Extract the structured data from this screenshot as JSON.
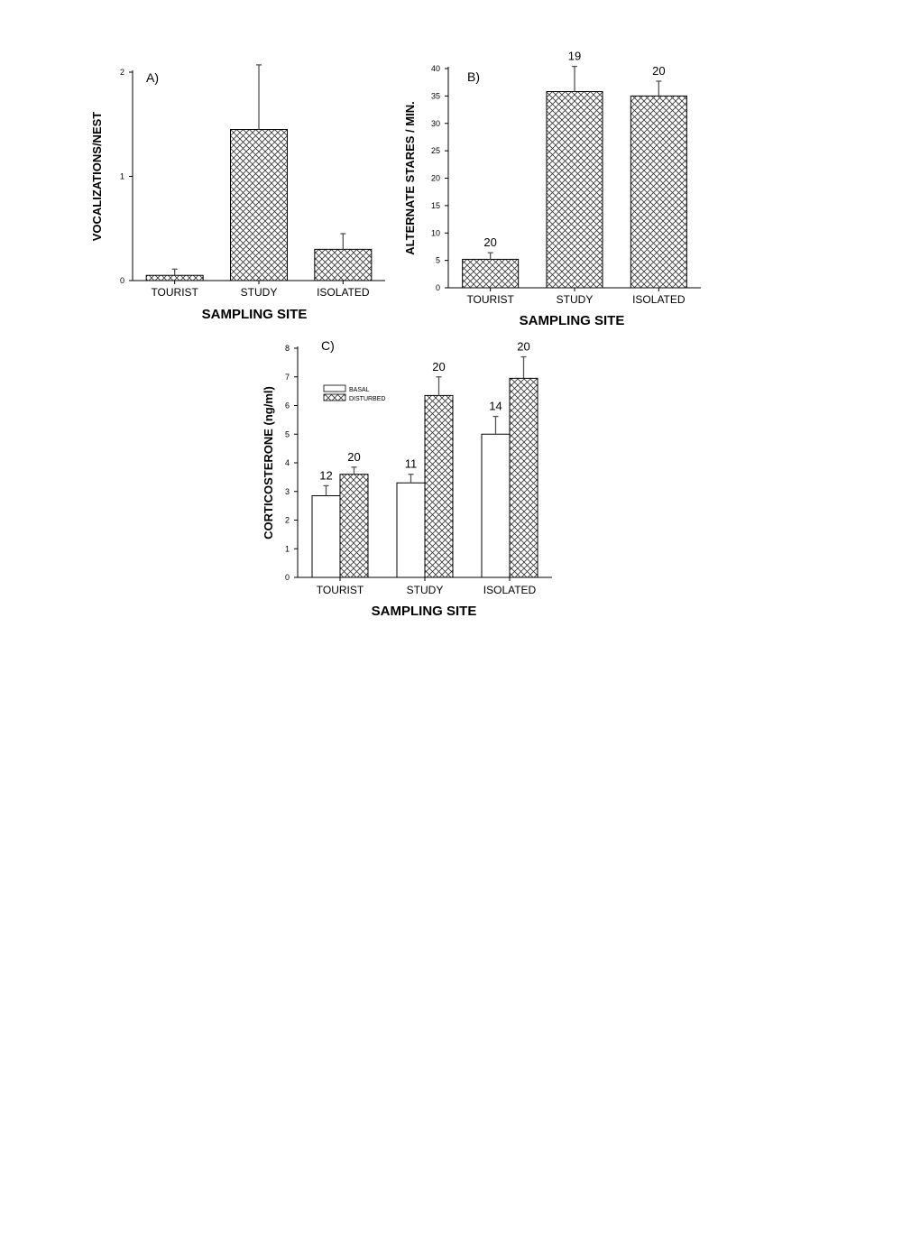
{
  "chart_data": [
    {
      "panel": "A)",
      "type": "bar",
      "xlabel": "SAMPLING SITE",
      "ylabel": "VOCALIZATIONS/NEST",
      "ylim": [
        0,
        2
      ],
      "yticks": [
        0,
        1,
        2
      ],
      "categories": [
        "TOURIST",
        "STUDY",
        "ISOLATED"
      ],
      "series": [
        {
          "pattern": "crosshatch",
          "values": [
            0.05,
            1.45,
            0.3
          ],
          "errors": [
            0.06,
            0.62,
            0.15
          ],
          "n_labels": [
            "",
            "",
            ""
          ]
        }
      ],
      "grid": false
    },
    {
      "panel": "B)",
      "type": "bar",
      "xlabel": "SAMPLING SITE",
      "ylabel": "ALTERNATE STARES / MIN.",
      "ylim": [
        0,
        40
      ],
      "yticks": [
        0,
        5,
        10,
        15,
        20,
        25,
        30,
        35,
        40
      ],
      "categories": [
        "TOURIST",
        "STUDY",
        "ISOLATED"
      ],
      "series": [
        {
          "pattern": "crosshatch",
          "values": [
            5.2,
            35.8,
            35.0
          ],
          "errors": [
            1.2,
            4.6,
            2.7
          ],
          "n_labels": [
            "20",
            "19",
            "20"
          ]
        }
      ],
      "grid": false
    },
    {
      "panel": "C)",
      "type": "bar",
      "xlabel": "SAMPLING SITE",
      "ylabel": "CORTICOSTERONE (ng/ml)",
      "ylim": [
        0,
        8
      ],
      "yticks": [
        0,
        1,
        2,
        3,
        4,
        5,
        6,
        7,
        8
      ],
      "categories": [
        "TOURIST",
        "STUDY",
        "ISOLATED"
      ],
      "legend_position": "top-left",
      "series": [
        {
          "name": "BASAL",
          "pattern": "open",
          "values": [
            2.85,
            3.3,
            5.0
          ],
          "errors": [
            0.35,
            0.3,
            0.62
          ],
          "n_labels": [
            "12",
            "11",
            "14"
          ]
        },
        {
          "name": "DISTURBED",
          "pattern": "crosshatch",
          "values": [
            3.6,
            6.35,
            6.95
          ],
          "errors": [
            0.25,
            0.65,
            0.75
          ],
          "n_labels": [
            "20",
            "20",
            "20"
          ]
        }
      ],
      "grid": false
    }
  ]
}
